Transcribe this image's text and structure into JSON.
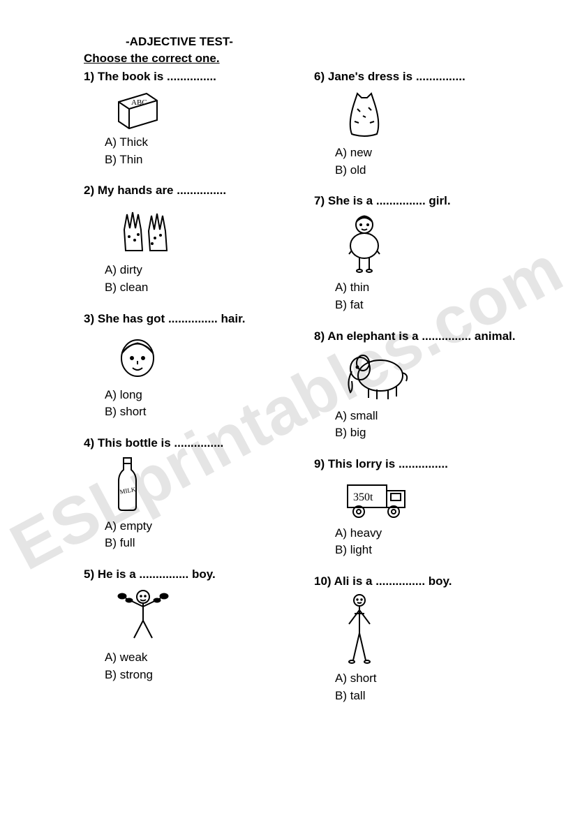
{
  "colors": {
    "text": "#000000",
    "background": "#ffffff",
    "watermark": "rgba(0,0,0,0.10)"
  },
  "typography": {
    "fontFamily": "Comic Sans MS, cursive, sans-serif",
    "fontSize": 17,
    "titleBold": true,
    "instructionUnderline": true
  },
  "title": "-ADJECTIVE TEST-",
  "instruction": "Choose the correct one.",
  "watermark": "ESLprintables.com",
  "blank": "...............",
  "questions": [
    {
      "num": "1)",
      "prompt_before": "The book is ",
      "prompt_after": "",
      "icon": "book",
      "options": [
        "Thick",
        "Thin"
      ]
    },
    {
      "num": "2)",
      "prompt_before": "My hands are ",
      "prompt_after": "",
      "icon": "hands",
      "options": [
        "dirty",
        "clean"
      ]
    },
    {
      "num": "3)",
      "prompt_before": "She has got ",
      "prompt_after": " hair.",
      "icon": "facehair",
      "options": [
        "long",
        "short"
      ]
    },
    {
      "num": "4)",
      "prompt_before": "This bottle is ",
      "prompt_after": "",
      "icon": "bottle",
      "options": [
        "empty",
        "full"
      ]
    },
    {
      "num": "5)",
      "prompt_before": "He is a ",
      "prompt_after": " boy.",
      "icon": "strongboy",
      "options": [
        "weak",
        "strong"
      ]
    },
    {
      "num": "6)",
      "prompt_before": "Jane's dress is ",
      "prompt_after": "",
      "icon": "dress",
      "options": [
        "new",
        "old"
      ]
    },
    {
      "num": "7)",
      "prompt_before": "She is a ",
      "prompt_after": " girl.",
      "icon": "girl",
      "options": [
        "thin",
        "fat"
      ]
    },
    {
      "num": "8)",
      "prompt_before": "An elephant is a ",
      "prompt_after": " animal.",
      "icon": "elephant",
      "options": [
        "small",
        "big"
      ]
    },
    {
      "num": "9)",
      "prompt_before": "This lorry is ",
      "prompt_after": "",
      "icon": "lorry",
      "options": [
        "heavy",
        "light"
      ]
    },
    {
      "num": "10)",
      "prompt_before": "Ali is a ",
      "prompt_after": " boy.",
      "icon": "tallboy",
      "options": [
        "short",
        "tall"
      ]
    }
  ],
  "optionLabels": [
    "A)",
    "B)"
  ]
}
